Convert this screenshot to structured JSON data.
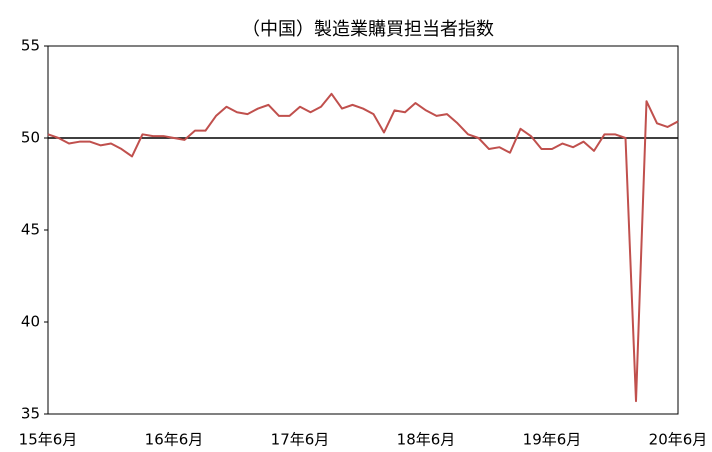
{
  "chart_data": {
    "type": "line",
    "title": "（中国）製造業購買担当者指数",
    "categories": [
      "15年6月",
      null,
      null,
      null,
      null,
      null,
      null,
      null,
      null,
      null,
      null,
      null,
      "16年6月",
      null,
      null,
      null,
      null,
      null,
      null,
      null,
      null,
      null,
      null,
      null,
      "17年6月",
      null,
      null,
      null,
      null,
      null,
      null,
      null,
      null,
      null,
      null,
      null,
      "18年6月",
      null,
      null,
      null,
      null,
      null,
      null,
      null,
      null,
      null,
      null,
      null,
      "19年6月",
      null,
      null,
      null,
      null,
      null,
      null,
      null,
      null,
      null,
      null,
      null,
      "20年6月"
    ],
    "series": [
      {
        "color": "#c0504d",
        "values": [
          50.2,
          50.0,
          49.7,
          49.8,
          49.8,
          49.6,
          49.7,
          49.4,
          49.0,
          50.2,
          50.1,
          50.1,
          50.0,
          49.9,
          50.4,
          50.4,
          51.2,
          51.7,
          51.4,
          51.3,
          51.6,
          51.8,
          51.2,
          51.2,
          51.7,
          51.4,
          51.7,
          52.4,
          51.6,
          51.8,
          51.6,
          51.3,
          50.3,
          51.5,
          51.4,
          51.9,
          51.5,
          51.2,
          51.3,
          50.8,
          50.2,
          50.0,
          49.4,
          49.5,
          49.2,
          50.5,
          50.1,
          49.4,
          49.4,
          49.7,
          49.5,
          49.8,
          49.3,
          50.2,
          50.2,
          50.0,
          35.7,
          52.0,
          50.8,
          50.6,
          50.9
        ]
      }
    ],
    "reference_line": 50,
    "ylim": [
      35,
      55
    ],
    "yticks": [
      35,
      40,
      45,
      50,
      55
    ],
    "grid": false
  }
}
